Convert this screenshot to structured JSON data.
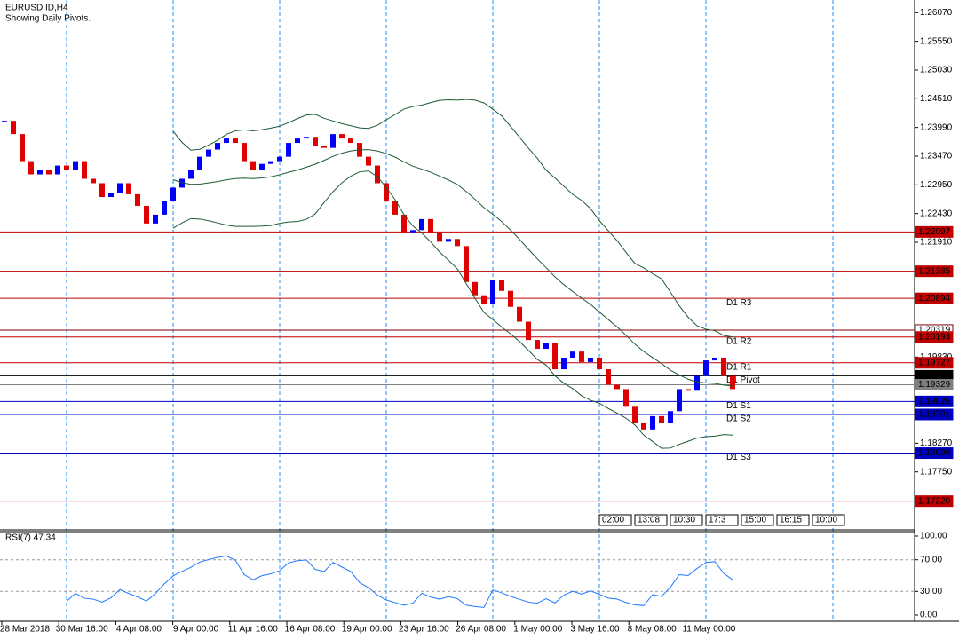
{
  "chart_data": {
    "type": "candlestick",
    "title": "EURUSD.ID,H4",
    "subtitle": "Showing Daily Pivots.",
    "close": [
      1.2411,
      1.2387,
      1.2338,
      1.2314,
      1.2322,
      1.2314,
      1.233,
      1.2322,
      1.2338,
      1.2306,
      1.2298,
      1.2273,
      1.2281,
      1.2298,
      1.2278,
      1.2257,
      1.2225,
      1.2241,
      1.2265,
      1.229,
      1.2306,
      1.2322,
      1.2346,
      1.2359,
      1.2371,
      1.2379,
      1.2371,
      1.2338,
      1.2322,
      1.2333,
      1.2338,
      1.2346,
      1.2371,
      1.2379,
      1.2382,
      1.2366,
      1.2362,
      1.2387,
      1.2379,
      1.2371,
      1.2346,
      1.233,
      1.2298,
      1.2265,
      1.2241,
      1.2209,
      1.2213,
      1.2233,
      1.2209,
      1.2192,
      1.2197,
      1.2184,
      1.2119,
      1.2095,
      1.2079,
      1.2123,
      1.2103,
      1.2074,
      1.2047,
      1.2014,
      1.1998,
      1.2009,
      1.1961,
      1.1982,
      1.1993,
      1.1974,
      1.1982,
      1.1961,
      1.1933,
      1.1925,
      1.1893,
      1.1863,
      1.1852,
      1.1876,
      1.1863,
      1.1885,
      1.1925,
      1.1922,
      1.1949,
      1.1977,
      1.1982,
      1.1949,
      1.1925
    ],
    "up_color": "#0000ff",
    "down_color": "#e00000",
    "band_color": "#1e5a32",
    "ylim": [
      1.167,
      1.263
    ],
    "yticks": [
      {
        "value": 1.2607,
        "label": "1.26070"
      },
      {
        "value": 1.2555,
        "label": "1.25550"
      },
      {
        "value": 1.2503,
        "label": "1.25030"
      },
      {
        "value": 1.2451,
        "label": "1.24510"
      },
      {
        "value": 1.2399,
        "label": "1.23990"
      },
      {
        "value": 1.2347,
        "label": "1.23470"
      },
      {
        "value": 1.2295,
        "label": "1.22950"
      },
      {
        "value": 1.2243,
        "label": "1.22430"
      },
      {
        "value": 1.2191,
        "label": "1.21910"
      },
      {
        "value": 1.1983,
        "label": "1.19830"
      },
      {
        "value": 1.1827,
        "label": "1.18270"
      },
      {
        "value": 1.1775,
        "label": "1.17750"
      }
    ],
    "levels": [
      {
        "value": 1.22097,
        "color": "#c00000"
      },
      {
        "value": 1.21385,
        "color": "#c00000"
      },
      {
        "name": "D1 R3",
        "value": 1.20894,
        "color": "#c00000"
      },
      {
        "value": 1.20319,
        "color": "#800000"
      },
      {
        "name": "D1 R2",
        "value": 1.20193,
        "color": "#c00000"
      },
      {
        "name": "D1 R1",
        "value": 1.19727,
        "color": "#c00000"
      },
      {
        "name": "D1 Pivot",
        "value": 1.19492,
        "color": "#000000"
      },
      {
        "value": 1.19329,
        "color": "#808080"
      },
      {
        "name": "D1 S1",
        "value": 1.19026,
        "color": "#0000c0"
      },
      {
        "name": "D1 S2",
        "value": 1.18791,
        "color": "#0000c0"
      },
      {
        "name": "D1 S3",
        "value": 1.1809,
        "label": "1.18090",
        "color": "#0000c0"
      },
      {
        "value": 1.1722,
        "label": "1.17220",
        "color": "#c00000"
      }
    ],
    "time_boxes": [
      "02:00",
      "13:08",
      "10:30",
      "17:3",
      "15:00",
      "16:15",
      "10:00"
    ],
    "x_labels": [
      "28 Mar 2018",
      "30 Mar 16:00",
      "4 Apr 08:00",
      "9 Apr 00:00",
      "11 Apr 16:00",
      "16 Apr 08:00",
      "19 Apr 00:00",
      "23 Apr 16:00",
      "26 Apr 08:00",
      "1 May 00:00",
      "3 May 16:00",
      "8 May 08:00",
      "11 May 00:00"
    ],
    "rsi": {
      "title": "RSI(7) 47.34",
      "color": "#1e78ff",
      "ylim": [
        0,
        100
      ],
      "yticks": [
        {
          "value": 100,
          "label": "100.00"
        },
        {
          "value": 70,
          "label": "70.00"
        },
        {
          "value": 30,
          "label": "30.00"
        },
        {
          "value": 0,
          "label": "0.00"
        }
      ]
    }
  }
}
